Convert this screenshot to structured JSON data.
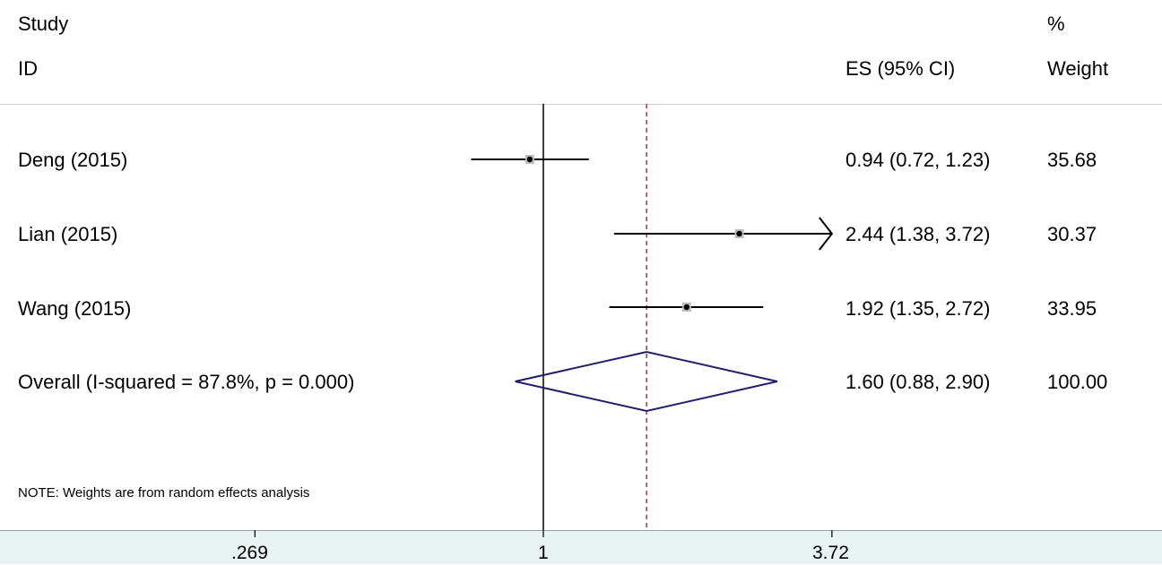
{
  "header": {
    "study": "Study",
    "id": "ID",
    "es": "ES (95% CI)",
    "percent": "%",
    "weight": "Weight"
  },
  "note": "NOTE: Weights are from random effects analysis",
  "chart_data": {
    "type": "forest",
    "scale": "log",
    "xlim": [
      0.269,
      3.72
    ],
    "xticks": [
      0.269,
      1,
      3.72
    ],
    "xtick_labels": [
      ".269",
      "1",
      "3.72"
    ],
    "null_line": 1,
    "pooled_line": 1.6,
    "studies": [
      {
        "label": "Deng (2015)",
        "es": 0.94,
        "lo": 0.72,
        "hi": 1.23,
        "es_text": "0.94 (0.72, 1.23)",
        "weight": "35.68"
      },
      {
        "label": "Lian (2015)",
        "es": 2.44,
        "lo": 1.38,
        "hi": 3.72,
        "es_text": "2.44 (1.38, 3.72)",
        "weight": "30.37",
        "arrow": true
      },
      {
        "label": "Wang (2015)",
        "es": 1.92,
        "lo": 1.35,
        "hi": 2.72,
        "es_text": "1.92 (1.35, 2.72)",
        "weight": "33.95"
      }
    ],
    "overall": {
      "label": "Overall  (I-squared = 87.8%, p = 0.000)",
      "es": 1.6,
      "lo": 0.88,
      "hi": 2.9,
      "es_text": "1.60 (0.88, 2.90)",
      "weight": "100.00"
    },
    "colors": {
      "diamond": "#1f1f6e",
      "pooled_line": "#9b3b3b",
      "marker": "#000000"
    }
  }
}
